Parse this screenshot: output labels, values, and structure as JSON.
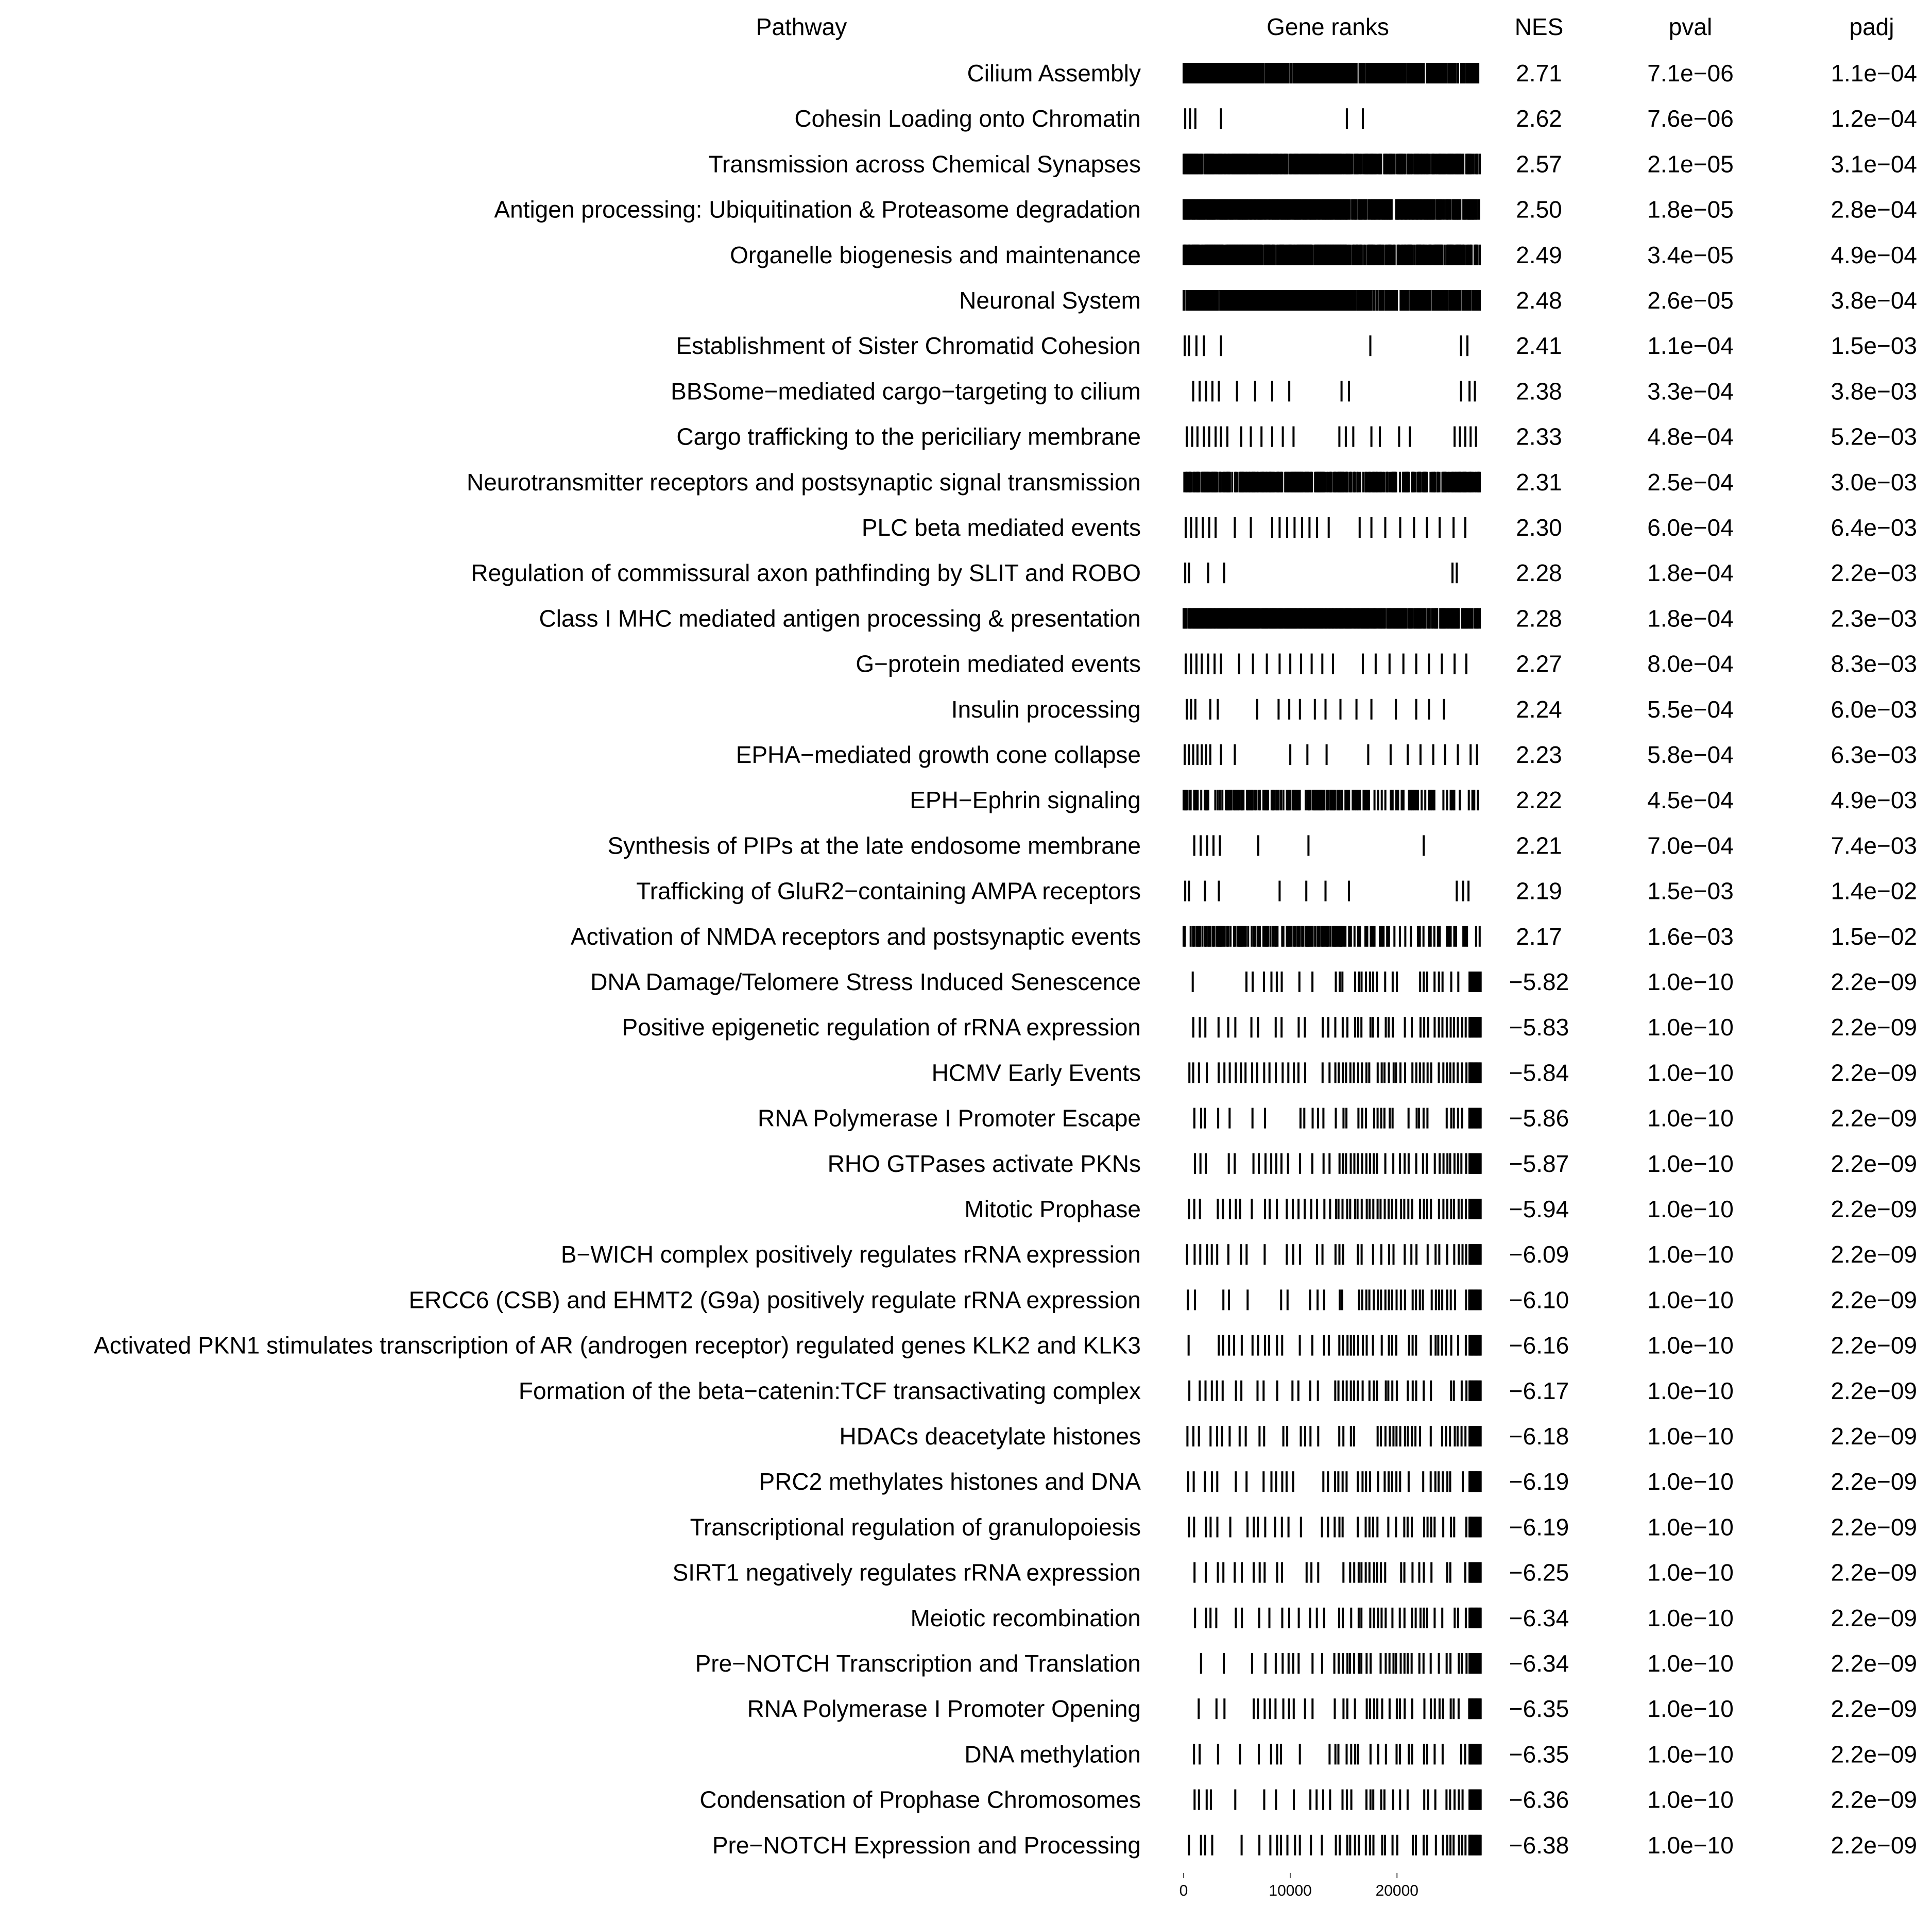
{
  "chart_data": {
    "type": "table",
    "columns": [
      "Pathway",
      "Gene ranks",
      "NES",
      "pval",
      "padj"
    ],
    "rank_axis": {
      "min": 0,
      "max": 28000,
      "ticks": [
        0,
        10000,
        20000
      ]
    },
    "rows": [
      {
        "pathway": "Cilium Assembly",
        "nes": "2.71",
        "pval": "7.1e−06",
        "padj": "1.1e−04",
        "pattern": "dense",
        "dens": 1.0
      },
      {
        "pathway": "Cohesin Loading onto Chromatin",
        "nes": "2.62",
        "pval": "7.6e−06",
        "padj": "1.2e−04",
        "ranks": [
          150,
          600,
          1100,
          3500,
          15300,
          16800
        ]
      },
      {
        "pathway": "Transmission across Chemical Synapses",
        "nes": "2.57",
        "pval": "2.1e−05",
        "padj": "3.1e−04",
        "pattern": "dense",
        "dens": 1.0
      },
      {
        "pathway": "Antigen processing: Ubiquitination & Proteasome degradation",
        "nes": "2.50",
        "pval": "1.8e−05",
        "padj": "2.8e−04",
        "pattern": "dense",
        "dens": 1.0
      },
      {
        "pathway": "Organelle biogenesis and maintenance",
        "nes": "2.49",
        "pval": "3.4e−05",
        "padj": "4.9e−04",
        "pattern": "dense",
        "dens": 1.0
      },
      {
        "pathway": "Neuronal System",
        "nes": "2.48",
        "pval": "2.6e−05",
        "padj": "3.8e−04",
        "pattern": "dense",
        "dens": 1.0
      },
      {
        "pathway": "Establishment of Sister Chromatid Cohesion",
        "nes": "2.41",
        "pval": "1.1e−04",
        "padj": "1.5e−03",
        "ranks": [
          100,
          500,
          1200,
          1900,
          3500,
          17500,
          26000,
          26600
        ]
      },
      {
        "pathway": "BBSome−mediated cargo−targeting to cilium",
        "nes": "2.38",
        "pval": "3.3e−04",
        "padj": "3.8e−03",
        "ranks": [
          900,
          1500,
          2100,
          2700,
          3300,
          5000,
          6700,
          8300,
          9900,
          14800,
          15500,
          26000,
          26800,
          27300
        ]
      },
      {
        "pathway": "Cargo trafficking to the periciliary membrane",
        "nes": "2.33",
        "pval": "4.8e−04",
        "padj": "5.2e−03",
        "ranks": [
          300,
          800,
          1300,
          1900,
          2400,
          3000,
          3500,
          4100,
          5400,
          6300,
          7300,
          8300,
          9300,
          10300,
          14600,
          15200,
          15900,
          17600,
          18400,
          20200,
          21200,
          25400,
          25900,
          26400,
          26900,
          27400
        ]
      },
      {
        "pathway": "Neurotransmitter receptors and postsynaptic signal transmission",
        "nes": "2.31",
        "pval": "2.5e−04",
        "padj": "3.0e−03",
        "pattern": "dense",
        "dens": 0.85
      },
      {
        "pathway": "PLC beta mediated events",
        "nes": "2.30",
        "pval": "6.0e−04",
        "padj": "6.4e−03",
        "ranks": [
          200,
          700,
          1200,
          1800,
          2400,
          3000,
          4800,
          6300,
          8300,
          9000,
          9700,
          10400,
          11100,
          11800,
          12500,
          13600,
          16500,
          17600,
          18900,
          20300,
          21600,
          22800,
          24000,
          25300,
          26400
        ]
      },
      {
        "pathway": "Regulation of commissural axon pathfinding by SLIT and ROBO",
        "nes": "2.28",
        "pval": "1.8e−04",
        "padj": "2.2e−03",
        "ranks": [
          150,
          500,
          2300,
          3800,
          25200,
          25600
        ]
      },
      {
        "pathway": "Class I MHC mediated antigen processing & presentation",
        "nes": "2.28",
        "pval": "1.8e−04",
        "padj": "2.3e−03",
        "pattern": "dense",
        "dens": 1.0
      },
      {
        "pathway": "G−protein mediated events",
        "nes": "2.27",
        "pval": "8.0e−04",
        "padj": "8.3e−03",
        "ranks": [
          200,
          700,
          1200,
          1700,
          2300,
          2900,
          3500,
          5200,
          6500,
          7800,
          9000,
          10000,
          11000,
          12000,
          13000,
          14000,
          16800,
          18000,
          19300,
          20600,
          21800,
          23000,
          24200,
          25400,
          26500
        ]
      },
      {
        "pathway": "Insulin processing",
        "nes": "2.24",
        "pval": "5.5e−04",
        "padj": "6.0e−03",
        "ranks": [
          300,
          700,
          1100,
          2500,
          3200,
          6900,
          8900,
          9900,
          10900,
          12300,
          13300,
          14700,
          16200,
          17600,
          19900,
          21800,
          23000,
          24400
        ]
      },
      {
        "pathway": "EPHA−mediated growth cone collapse",
        "nes": "2.23",
        "pval": "5.8e−04",
        "padj": "6.3e−03",
        "ranks": [
          100,
          500,
          900,
          1300,
          1700,
          2100,
          2500,
          3500,
          4800,
          10000,
          11600,
          13400,
          17300,
          19400,
          21000,
          22200,
          23400,
          24500,
          25700,
          26900,
          27500
        ]
      },
      {
        "pathway": "EPH−Ephrin signaling",
        "nes": "2.22",
        "pval": "4.5e−04",
        "padj": "4.9e−03",
        "pattern": "mixed",
        "dens": 0.6
      },
      {
        "pathway": "Synthesis of PIPs at the late endosome membrane",
        "nes": "2.21",
        "pval": "7.0e−04",
        "padj": "7.4e−03",
        "ranks": [
          1000,
          1600,
          2200,
          2800,
          3400,
          7000,
          11700,
          22500
        ]
      },
      {
        "pathway": "Trafficking of GluR2−containing AMPA receptors",
        "nes": "2.19",
        "pval": "1.5e−03",
        "padj": "1.4e−02",
        "ranks": [
          150,
          500,
          2000,
          3300,
          9000,
          11500,
          13300,
          15500,
          25600,
          26200,
          26700
        ]
      },
      {
        "pathway": "Activation of NMDA receptors and postsynaptic events",
        "nes": "2.17",
        "pval": "1.6e−03",
        "padj": "1.5e−02",
        "pattern": "mixed",
        "dens": 0.55
      },
      {
        "pathway": "DNA Damage/Telomere Stress Induced Senescence",
        "nes": "−5.82",
        "pval": "1.0e−10",
        "padj": "2.2e−09",
        "pattern": "neg",
        "dens": 0.35
      },
      {
        "pathway": "Positive epigenetic regulation of rRNA expression",
        "nes": "−5.83",
        "pval": "1.0e−10",
        "padj": "2.2e−09",
        "pattern": "neg",
        "dens": 0.45
      },
      {
        "pathway": "HCMV Early Events",
        "nes": "−5.84",
        "pval": "1.0e−10",
        "padj": "2.2e−09",
        "pattern": "neg",
        "dens": 0.6
      },
      {
        "pathway": "RNA Polymerase I Promoter Escape",
        "nes": "−5.86",
        "pval": "1.0e−10",
        "padj": "2.2e−09",
        "pattern": "neg",
        "dens": 0.4
      },
      {
        "pathway": "RHO GTPases activate PKNs",
        "nes": "−5.87",
        "pval": "1.0e−10",
        "padj": "2.2e−09",
        "pattern": "neg",
        "dens": 0.4
      },
      {
        "pathway": "Mitotic Prophase",
        "nes": "−5.94",
        "pval": "1.0e−10",
        "padj": "2.2e−09",
        "pattern": "neg",
        "dens": 0.6
      },
      {
        "pathway": "B−WICH complex positively regulates rRNA expression",
        "nes": "−6.09",
        "pval": "1.0e−10",
        "padj": "2.2e−09",
        "pattern": "neg",
        "dens": 0.35
      },
      {
        "pathway": "ERCC6 (CSB) and EHMT2 (G9a) positively regulate rRNA expression",
        "nes": "−6.10",
        "pval": "1.0e−10",
        "padj": "2.2e−09",
        "pattern": "neg",
        "dens": 0.3
      },
      {
        "pathway": "Activated PKN1 stimulates transcription of AR (androgen receptor) regulated genes KLK2 and KLK3",
        "nes": "−6.16",
        "pval": "1.0e−10",
        "padj": "2.2e−09",
        "pattern": "neg",
        "dens": 0.25
      },
      {
        "pathway": "Formation of the beta−catenin:TCF transactivating complex",
        "nes": "−6.17",
        "pval": "1.0e−10",
        "padj": "2.2e−09",
        "pattern": "neg",
        "dens": 0.3
      },
      {
        "pathway": "HDACs deacetylate histones",
        "nes": "−6.18",
        "pval": "1.0e−10",
        "padj": "2.2e−09",
        "pattern": "neg",
        "dens": 0.3
      },
      {
        "pathway": "PRC2 methylates histones and DNA",
        "nes": "−6.19",
        "pval": "1.0e−10",
        "padj": "2.2e−09",
        "pattern": "neg",
        "dens": 0.25
      },
      {
        "pathway": "Transcriptional regulation of granulopoiesis",
        "nes": "−6.19",
        "pval": "1.0e−10",
        "padj": "2.2e−09",
        "pattern": "neg",
        "dens": 0.3
      },
      {
        "pathway": "SIRT1 negatively regulates rRNA expression",
        "nes": "−6.25",
        "pval": "1.0e−10",
        "padj": "2.2e−09",
        "pattern": "neg",
        "dens": 0.2
      },
      {
        "pathway": "Meiotic recombination",
        "nes": "−6.34",
        "pval": "1.0e−10",
        "padj": "2.2e−09",
        "pattern": "neg",
        "dens": 0.25
      },
      {
        "pathway": "Pre−NOTCH Transcription and Translation",
        "nes": "−6.34",
        "pval": "1.0e−10",
        "padj": "2.2e−09",
        "pattern": "neg",
        "dens": 0.3
      },
      {
        "pathway": "RNA Polymerase I Promoter Opening",
        "nes": "−6.35",
        "pval": "1.0e−10",
        "padj": "2.2e−09",
        "pattern": "neg",
        "dens": 0.2
      },
      {
        "pathway": "DNA methylation",
        "nes": "−6.35",
        "pval": "1.0e−10",
        "padj": "2.2e−09",
        "pattern": "neg",
        "dens": 0.2
      },
      {
        "pathway": "Condensation of Prophase Chromosomes",
        "nes": "−6.36",
        "pval": "1.0e−10",
        "padj": "2.2e−09",
        "pattern": "neg",
        "dens": 0.25
      },
      {
        "pathway": "Pre−NOTCH Expression and Processing",
        "nes": "−6.38",
        "pval": "1.0e−10",
        "padj": "2.2e−09",
        "pattern": "neg",
        "dens": 0.35
      }
    ]
  }
}
